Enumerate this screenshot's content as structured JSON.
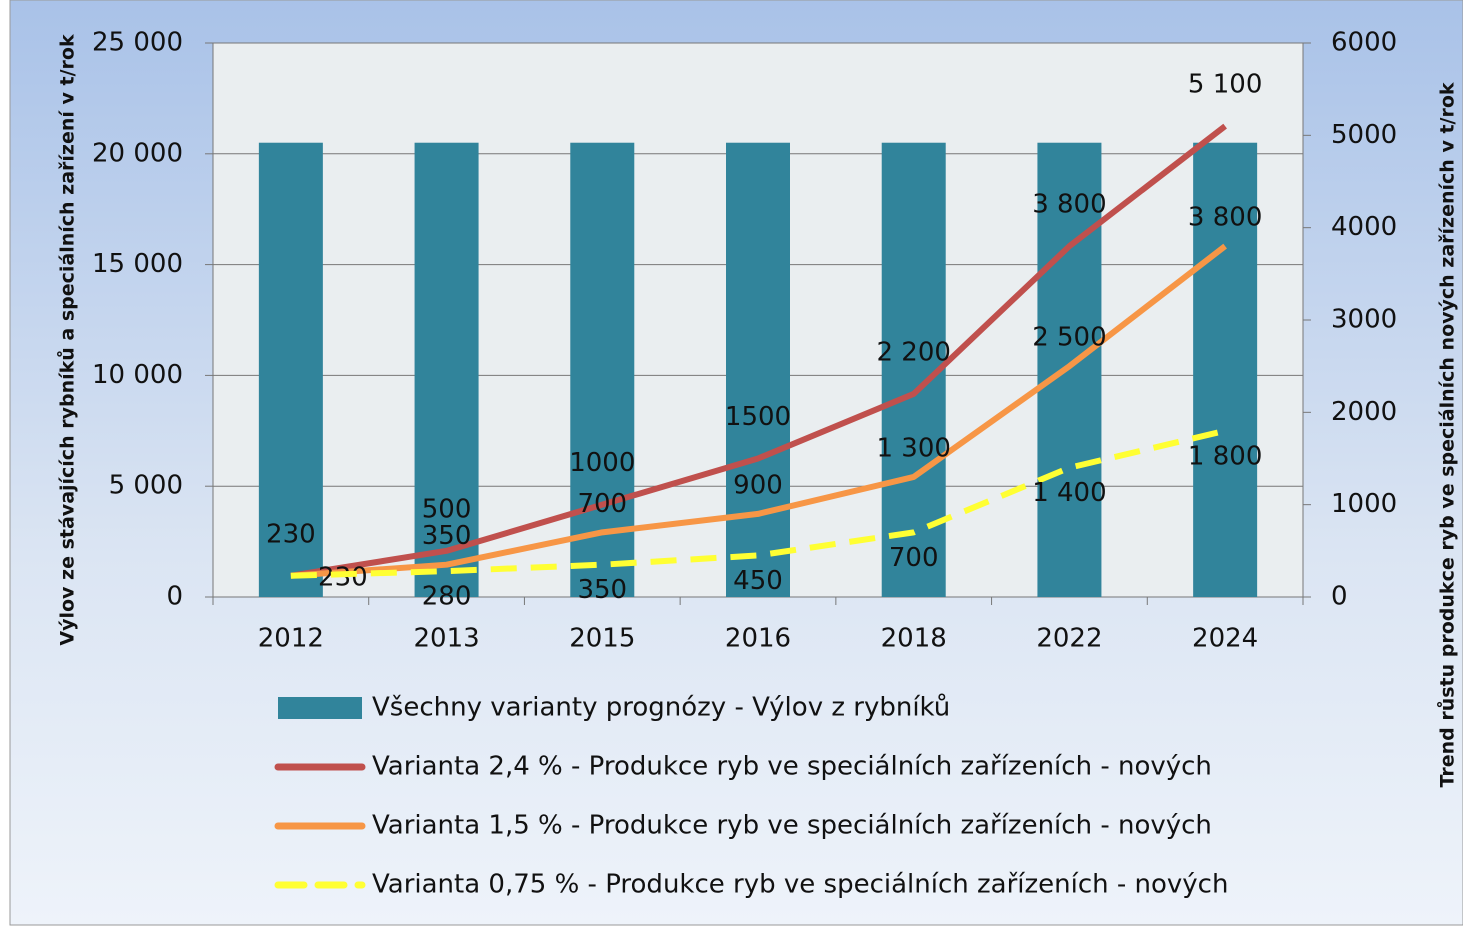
{
  "chart_data": {
    "type": "bar_line",
    "y_label": "Výlov ze stávajících rybníků a speciálních zařízení v t/rok",
    "y2_label": "Trend růstu produkce ryb ve speciálních nových zařízeních v t/rok",
    "categories": [
      "2012",
      "2013",
      "2015",
      "2016",
      "2018",
      "2022",
      "2024"
    ],
    "ylim": [
      0,
      25000
    ],
    "yticks": [
      0,
      {
        "value": 5000,
        "label": "5 000"
      },
      {
        "value": 10000,
        "label": "10 000"
      },
      {
        "value": 15000,
        "label": "15 000"
      },
      {
        "value": 20000,
        "label": "20 000"
      },
      {
        "value": 25000,
        "label": "25 000"
      }
    ],
    "y2lim": [
      0,
      6000
    ],
    "y2ticks": [
      0,
      1000,
      2000,
      3000,
      4000,
      5000,
      6000
    ],
    "series": [
      {
        "name": "Všechny varianty prognózy - Výlov z rybníků",
        "type": "bar",
        "color": "#31849b",
        "values": [
          20500,
          20500,
          20500,
          20500,
          20500,
          20500,
          20500
        ]
      },
      {
        "name": "Varianta 2,4 % - Produkce ryb ve speciálních zařízeních - nových",
        "type": "line",
        "axis": "y2",
        "color": "#c0504d",
        "values": [
          230,
          500,
          1000,
          1500,
          2200,
          3800,
          5100
        ],
        "value_labels": [
          "230",
          "500",
          "1000",
          "1500",
          "2 200",
          "3 800",
          "5 100"
        ]
      },
      {
        "name": "Varianta 1,5 % - Produkce ryb ve speciálních zařízeních - nových",
        "type": "line",
        "axis": "y2",
        "color": "#f79646",
        "values": [
          230,
          350,
          700,
          900,
          1300,
          2500,
          3800
        ],
        "value_labels": [
          "230",
          "350",
          "700",
          "900",
          "1 300",
          "2 500",
          "3 800"
        ]
      },
      {
        "name": "Varianta 0,75 % - Produkce ryb ve speciálních zařízeních - nových",
        "type": "line",
        "axis": "y2",
        "dashed": true,
        "color": "#ffff33",
        "values": [
          230,
          280,
          350,
          450,
          700,
          1400,
          1800
        ],
        "value_labels": [
          null,
          "280",
          "350",
          "450",
          "700",
          "1 400",
          "1 800"
        ]
      }
    ]
  }
}
